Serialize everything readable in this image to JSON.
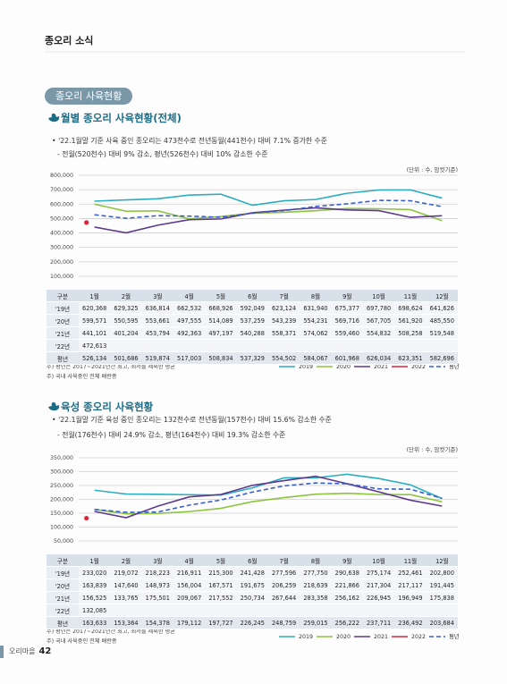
{
  "header": "종오리 소식",
  "section_title": "종오리 사육현황",
  "footer": {
    "label": "오리마을",
    "page": "42"
  },
  "sections": [
    {
      "title": "월별 종오리 사육현황(전체)",
      "bullets": [
        "• '22.1월말 기준 사육 중인 종오리는 473천수로  전년동월(441천수) 대비 7.1% 증가한 수준",
        "- 전월(520천수) 대비 9% 감소, 평년(526천수) 대비 10% 감소한 수준"
      ],
      "unit": "(단위 : 수, 암컷기준)",
      "table": {
        "corner": "구분",
        "rows": [
          {
            "label": "'19년",
            "cells": [
              "620,368",
              "629,325",
              "636,814",
              "662,532",
              "668,926",
              "592,049",
              "623,124",
              "631,940",
              "675,377",
              "697,780",
              "698,624",
              "641,626"
            ]
          },
          {
            "label": "'20년",
            "cells": [
              "599,571",
              "550,595",
              "553,661",
              "497,555",
              "514,089",
              "537,259",
              "543,239",
              "554,231",
              "569,716",
              "567,705",
              "561,920",
              "485,550"
            ]
          },
          {
            "label": "'21년",
            "cells": [
              "441,101",
              "401,204",
              "453,794",
              "492,363",
              "497,197",
              "540,288",
              "558,371",
              "574,062",
              "559,460",
              "554,832",
              "508,258",
              "519,548"
            ]
          },
          {
            "label": "'22년",
            "cells": [
              "472,613",
              "",
              "",
              "",
              "",
              "",
              "",
              "",
              "",
              "",
              "",
              ""
            ]
          },
          {
            "label": "평년",
            "cells": [
              "526,134",
              "501,686",
              "519,874",
              "517,003",
              "508,834",
              "537,329",
              "554,502",
              "584,067",
              "601,968",
              "626,034",
              "623,351",
              "582,696"
            ]
          }
        ]
      },
      "notes": [
        "주) 평년은 2017~2021년간 최고, 최저를 제외한 평균",
        "주) 국내 사육중인 전체 배란종"
      ]
    },
    {
      "title": "육성 종오리 사육현황",
      "bullets": [
        "• '22.1월말 기준 육성 중인 종오리는 132천수로  전년동월(157천수) 대비 15.6% 감소한 수준",
        "- 전월(176천수) 대비 24.9% 감소, 평년(164천수) 대비 19.3% 감소한 수준"
      ],
      "unit": "(단위 : 수, 암컷기준)",
      "table": {
        "corner": "구분",
        "rows": [
          {
            "label": "'19년",
            "cells": [
              "233,020",
              "219,072",
              "218,223",
              "216,911",
              "215,300",
              "241,428",
              "277,596",
              "277,750",
              "290,638",
              "275,174",
              "252,461",
              "202,800"
            ]
          },
          {
            "label": "'20년",
            "cells": [
              "163,839",
              "147,640",
              "148,973",
              "156,004",
              "167,571",
              "191,675",
              "206,259",
              "218,639",
              "221,866",
              "217,304",
              "217,117",
              "191,445"
            ]
          },
          {
            "label": "'21년",
            "cells": [
              "156,525",
              "133,765",
              "175,501",
              "209,067",
              "217,552",
              "250,734",
              "267,644",
              "283,358",
              "256,162",
              "226,945",
              "196,949",
              "175,838"
            ]
          },
          {
            "label": "'22년",
            "cells": [
              "132,085",
              "",
              "",
              "",
              "",
              "",
              "",
              "",
              "",
              "",
              "",
              ""
            ]
          },
          {
            "label": "평년",
            "cells": [
              "163,633",
              "153,364",
              "154,378",
              "179,112",
              "197,727",
              "226,245",
              "248,759",
              "259,015",
              "256,222",
              "237,711",
              "236,492",
              "203,684"
            ]
          }
        ]
      },
      "notes": [
        "주) 평년은 2017~2021년간 최고, 최저를 제외한 평균",
        "주) 국내 사육중인 전체 배란종"
      ]
    }
  ],
  "chart_data": [
    {
      "type": "line",
      "categories": [
        "1월",
        "2월",
        "3월",
        "4월",
        "5월",
        "6월",
        "7월",
        "8월",
        "9월",
        "10월",
        "11월",
        "12월"
      ],
      "ylim": [
        100000,
        800000
      ],
      "yticks": [
        {
          "value": 100000,
          "label": "100,000"
        },
        {
          "value": 200000,
          "label": "200,000"
        },
        {
          "value": 300000,
          "label": "300,000"
        },
        {
          "value": 400000,
          "label": "400,000"
        },
        {
          "value": 500000,
          "label": "500,000"
        },
        {
          "value": 600000,
          "label": "600,000"
        },
        {
          "value": 700000,
          "label": "700,000"
        },
        {
          "value": 800000,
          "label": "800,000"
        }
      ],
      "grid": true,
      "series": [
        {
          "name": "2019",
          "color": "#2aaebf",
          "values": [
            620368,
            629325,
            636814,
            662532,
            668926,
            592049,
            623124,
            631940,
            675377,
            697780,
            698624,
            641626
          ]
        },
        {
          "name": "2020",
          "color": "#8cc43f",
          "values": [
            599571,
            550595,
            553661,
            497555,
            514089,
            537259,
            543239,
            554231,
            569716,
            567705,
            561920,
            485550
          ]
        },
        {
          "name": "2021",
          "color": "#5e3a8f",
          "values": [
            441101,
            401204,
            453794,
            492363,
            497197,
            540288,
            558371,
            574062,
            559460,
            554832,
            508258,
            519548
          ]
        },
        {
          "name": "2022",
          "color": "#d7263d",
          "values": [
            472613,
            null,
            null,
            null,
            null,
            null,
            null,
            null,
            null,
            null,
            null,
            null
          ]
        },
        {
          "name": "평년",
          "color": "#3b5fc9",
          "dashed": true,
          "values": [
            526134,
            501686,
            519874,
            517003,
            508834,
            537329,
            554502,
            584067,
            601968,
            626034,
            623351,
            582696
          ]
        }
      ]
    },
    {
      "type": "line",
      "categories": [
        "1월",
        "2월",
        "3월",
        "4월",
        "5월",
        "6월",
        "7월",
        "8월",
        "9월",
        "10월",
        "11월",
        "12월"
      ],
      "ylim": [
        50000,
        350000
      ],
      "yticks": [
        {
          "value": 50000,
          "label": "50,000"
        },
        {
          "value": 100000,
          "label": "100,000"
        },
        {
          "value": 150000,
          "label": "150,000"
        },
        {
          "value": 200000,
          "label": "200,000"
        },
        {
          "value": 250000,
          "label": "250,000"
        },
        {
          "value": 300000,
          "label": "300,000"
        },
        {
          "value": 350000,
          "label": "350,000"
        }
      ],
      "grid": true,
      "series": [
        {
          "name": "2019",
          "color": "#2aaebf",
          "values": [
            233020,
            219072,
            218223,
            216911,
            215300,
            241428,
            277596,
            277750,
            290638,
            275174,
            252461,
            202800
          ]
        },
        {
          "name": "2020",
          "color": "#8cc43f",
          "values": [
            163839,
            147640,
            148973,
            156004,
            167571,
            191675,
            206259,
            218639,
            221866,
            217304,
            217117,
            191445
          ]
        },
        {
          "name": "2021",
          "color": "#5e3a8f",
          "values": [
            156525,
            133765,
            175501,
            209067,
            217552,
            250734,
            267644,
            283358,
            256162,
            226945,
            196949,
            175838
          ]
        },
        {
          "name": "2022",
          "color": "#d7263d",
          "values": [
            132085,
            null,
            null,
            null,
            null,
            null,
            null,
            null,
            null,
            null,
            null,
            null
          ]
        },
        {
          "name": "평년",
          "color": "#3b5fc9",
          "dashed": true,
          "values": [
            163633,
            153364,
            154378,
            179112,
            197727,
            226245,
            248759,
            259015,
            256222,
            237711,
            236492,
            203684
          ]
        }
      ]
    }
  ]
}
